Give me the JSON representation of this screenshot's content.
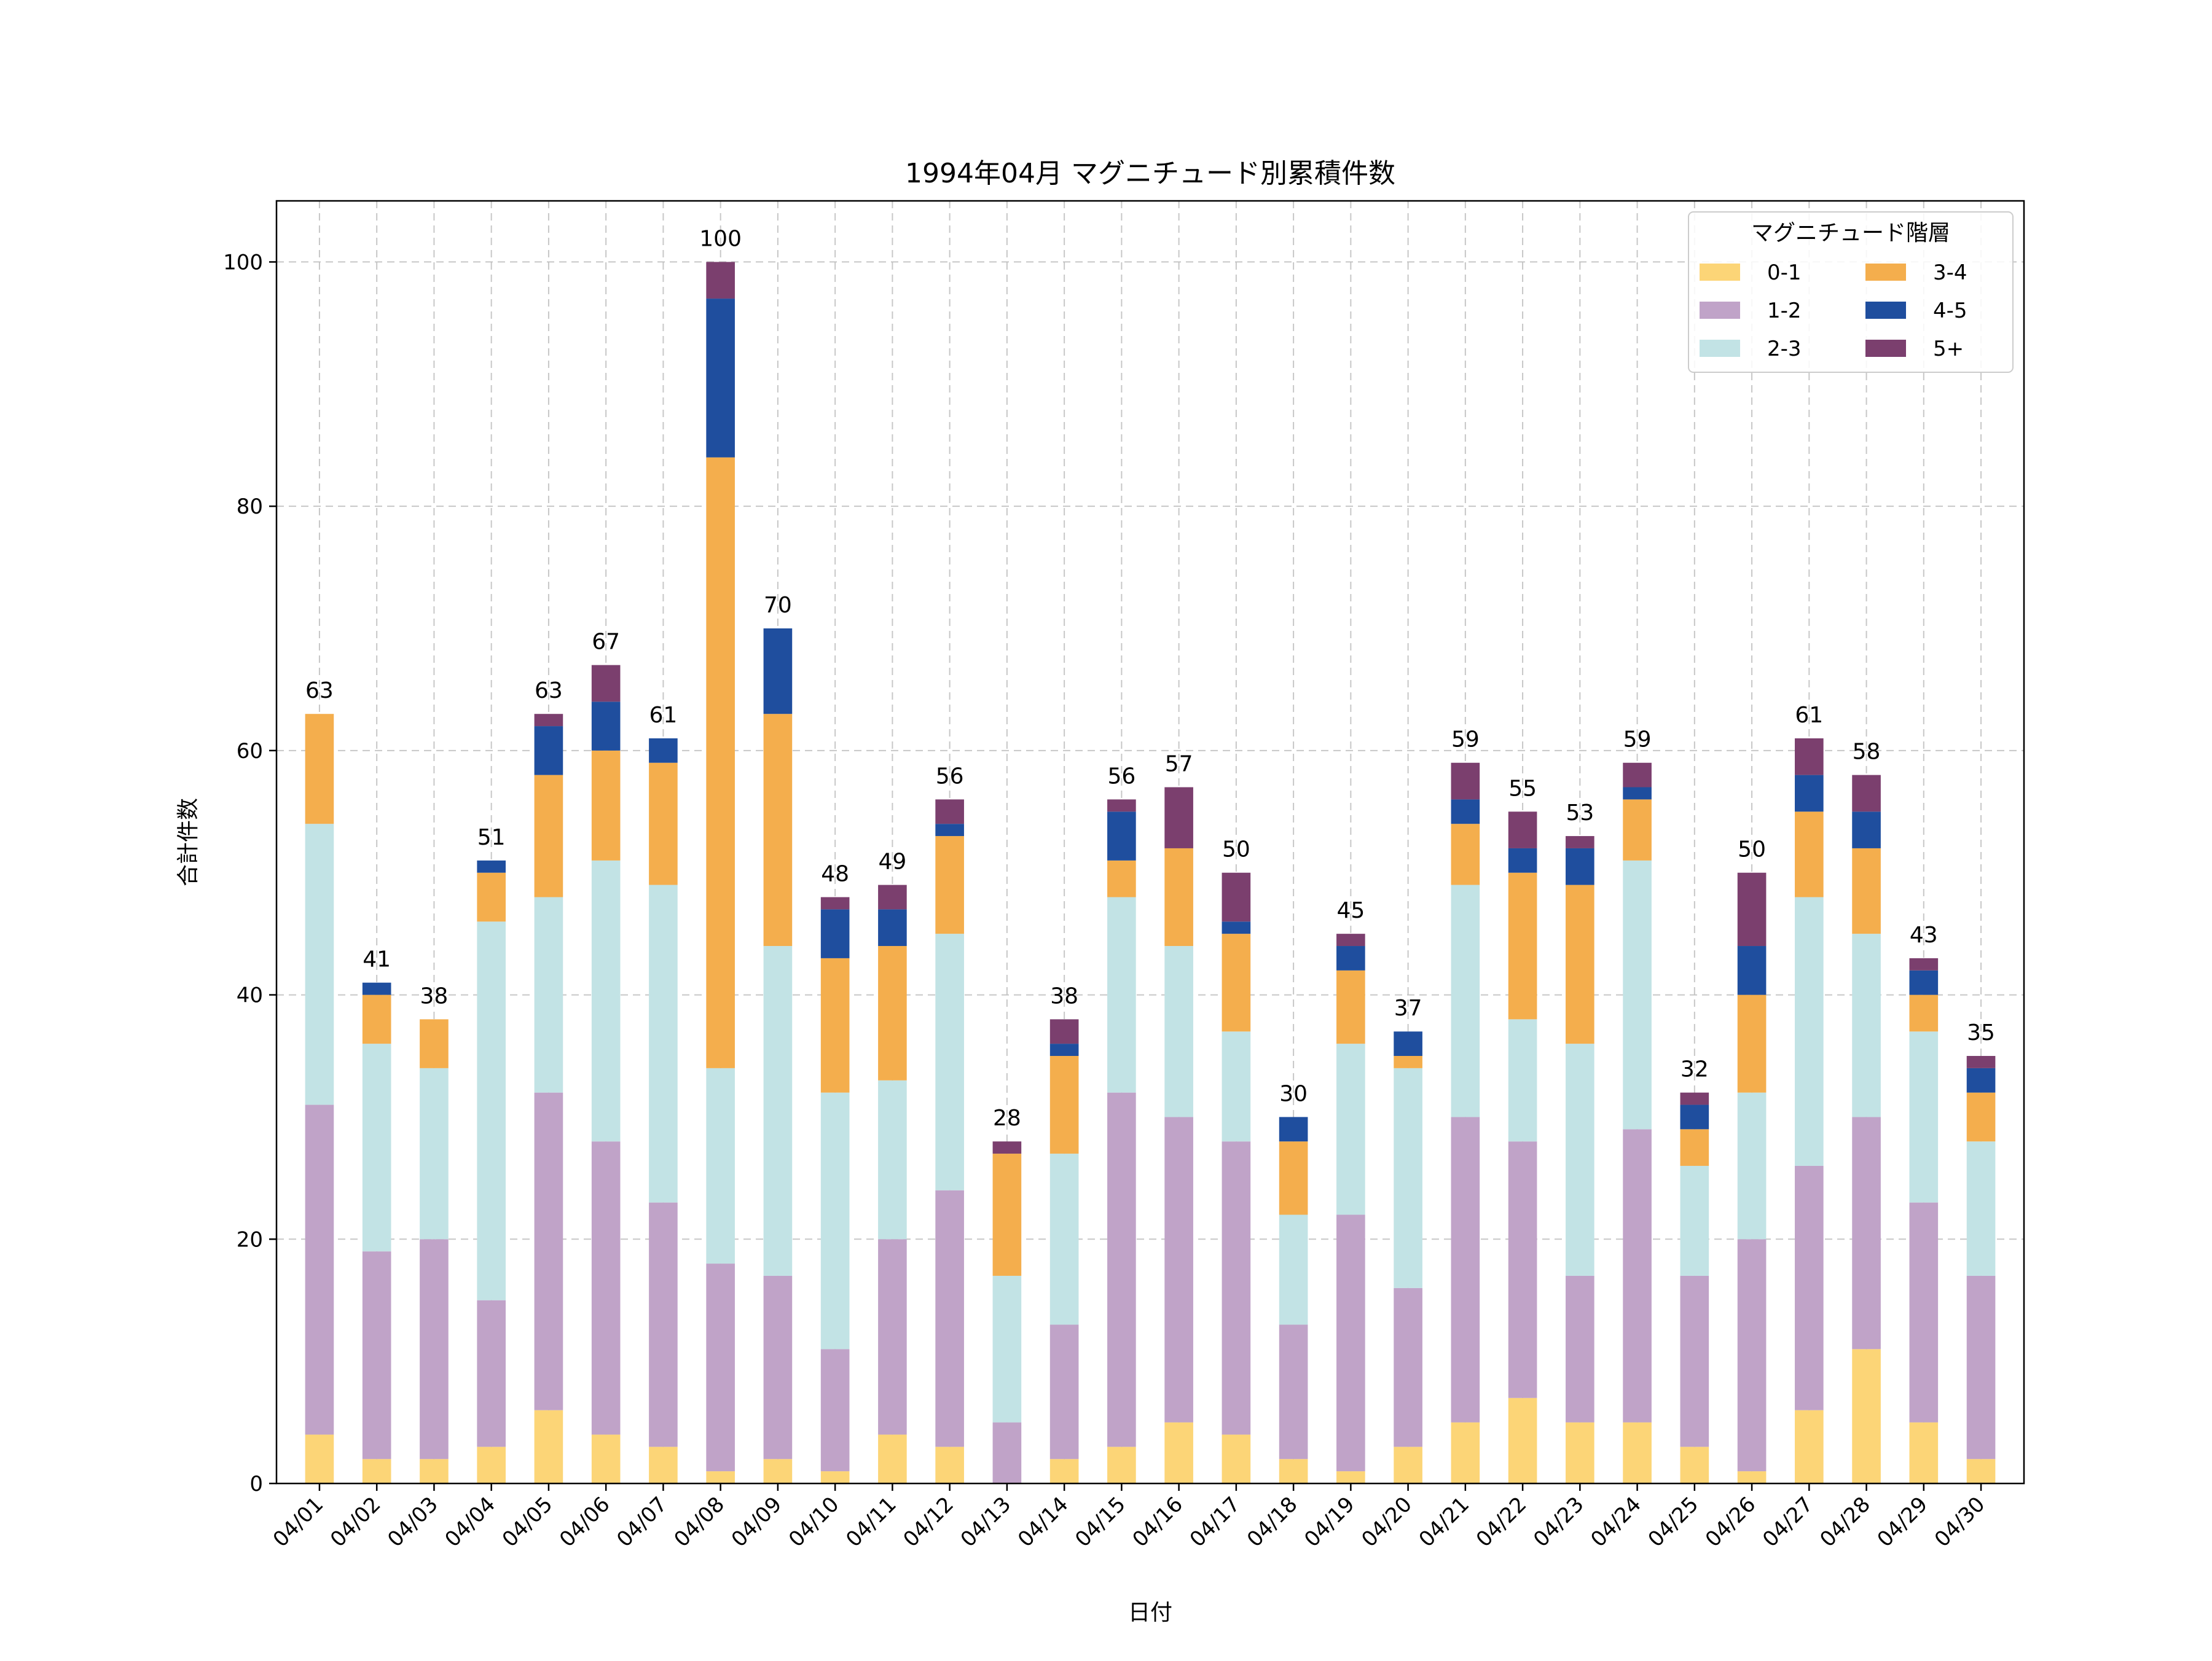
{
  "chart_data": {
    "type": "bar",
    "stacked": true,
    "title": "1994年04月 マグニチュード別累積件数",
    "xlabel": "日付",
    "ylabel": "合計件数",
    "ylim": [
      0,
      105
    ],
    "yticks": [
      0,
      20,
      40,
      60,
      80,
      100
    ],
    "grid": true,
    "legend_title": "マグニチュード階層",
    "legend_position": "top-right",
    "categories": [
      "04/01",
      "04/02",
      "04/03",
      "04/04",
      "04/05",
      "04/06",
      "04/07",
      "04/08",
      "04/09",
      "04/10",
      "04/11",
      "04/12",
      "04/13",
      "04/14",
      "04/15",
      "04/16",
      "04/17",
      "04/18",
      "04/19",
      "04/20",
      "04/21",
      "04/22",
      "04/23",
      "04/24",
      "04/25",
      "04/26",
      "04/27",
      "04/28",
      "04/29",
      "04/30"
    ],
    "series": [
      {
        "name": "0-1",
        "color": "#fcd577",
        "values": [
          4,
          2,
          2,
          3,
          6,
          4,
          3,
          1,
          2,
          1,
          4,
          3,
          0,
          2,
          3,
          5,
          4,
          2,
          1,
          3,
          5,
          7,
          5,
          5,
          3,
          1,
          6,
          11,
          5,
          2
        ]
      },
      {
        "name": "1-2",
        "color": "#c0a3c8",
        "values": [
          27,
          17,
          18,
          12,
          26,
          24,
          20,
          17,
          15,
          10,
          16,
          21,
          5,
          11,
          29,
          25,
          24,
          11,
          21,
          13,
          25,
          21,
          12,
          24,
          14,
          19,
          20,
          19,
          18,
          15
        ]
      },
      {
        "name": "2-3",
        "color": "#c2e3e5",
        "values": [
          23,
          17,
          14,
          31,
          16,
          23,
          26,
          16,
          27,
          21,
          13,
          21,
          12,
          14,
          16,
          14,
          9,
          9,
          14,
          18,
          19,
          10,
          19,
          22,
          9,
          12,
          22,
          15,
          14,
          11
        ]
      },
      {
        "name": "3-4",
        "color": "#f4ae4d",
        "values": [
          9,
          4,
          4,
          4,
          10,
          9,
          10,
          50,
          19,
          11,
          11,
          8,
          10,
          8,
          3,
          8,
          8,
          6,
          6,
          1,
          5,
          12,
          13,
          5,
          3,
          8,
          7,
          7,
          3,
          4
        ]
      },
      {
        "name": "4-5",
        "color": "#1f4e9e",
        "values": [
          0,
          1,
          0,
          1,
          4,
          4,
          2,
          13,
          7,
          4,
          3,
          1,
          0,
          1,
          4,
          0,
          1,
          2,
          2,
          2,
          2,
          2,
          3,
          1,
          2,
          4,
          3,
          3,
          2,
          2
        ]
      },
      {
        "name": "5+",
        "color": "#7b3f6e",
        "values": [
          0,
          0,
          0,
          0,
          1,
          3,
          0,
          3,
          0,
          1,
          2,
          2,
          1,
          2,
          1,
          5,
          4,
          0,
          1,
          0,
          3,
          3,
          1,
          2,
          1,
          6,
          3,
          3,
          1,
          1
        ]
      }
    ],
    "totals": [
      63,
      41,
      38,
      51,
      63,
      67,
      61,
      100,
      70,
      48,
      49,
      56,
      28,
      38,
      56,
      57,
      50,
      30,
      45,
      37,
      59,
      55,
      53,
      59,
      32,
      50,
      61,
      58,
      43,
      35
    ]
  }
}
